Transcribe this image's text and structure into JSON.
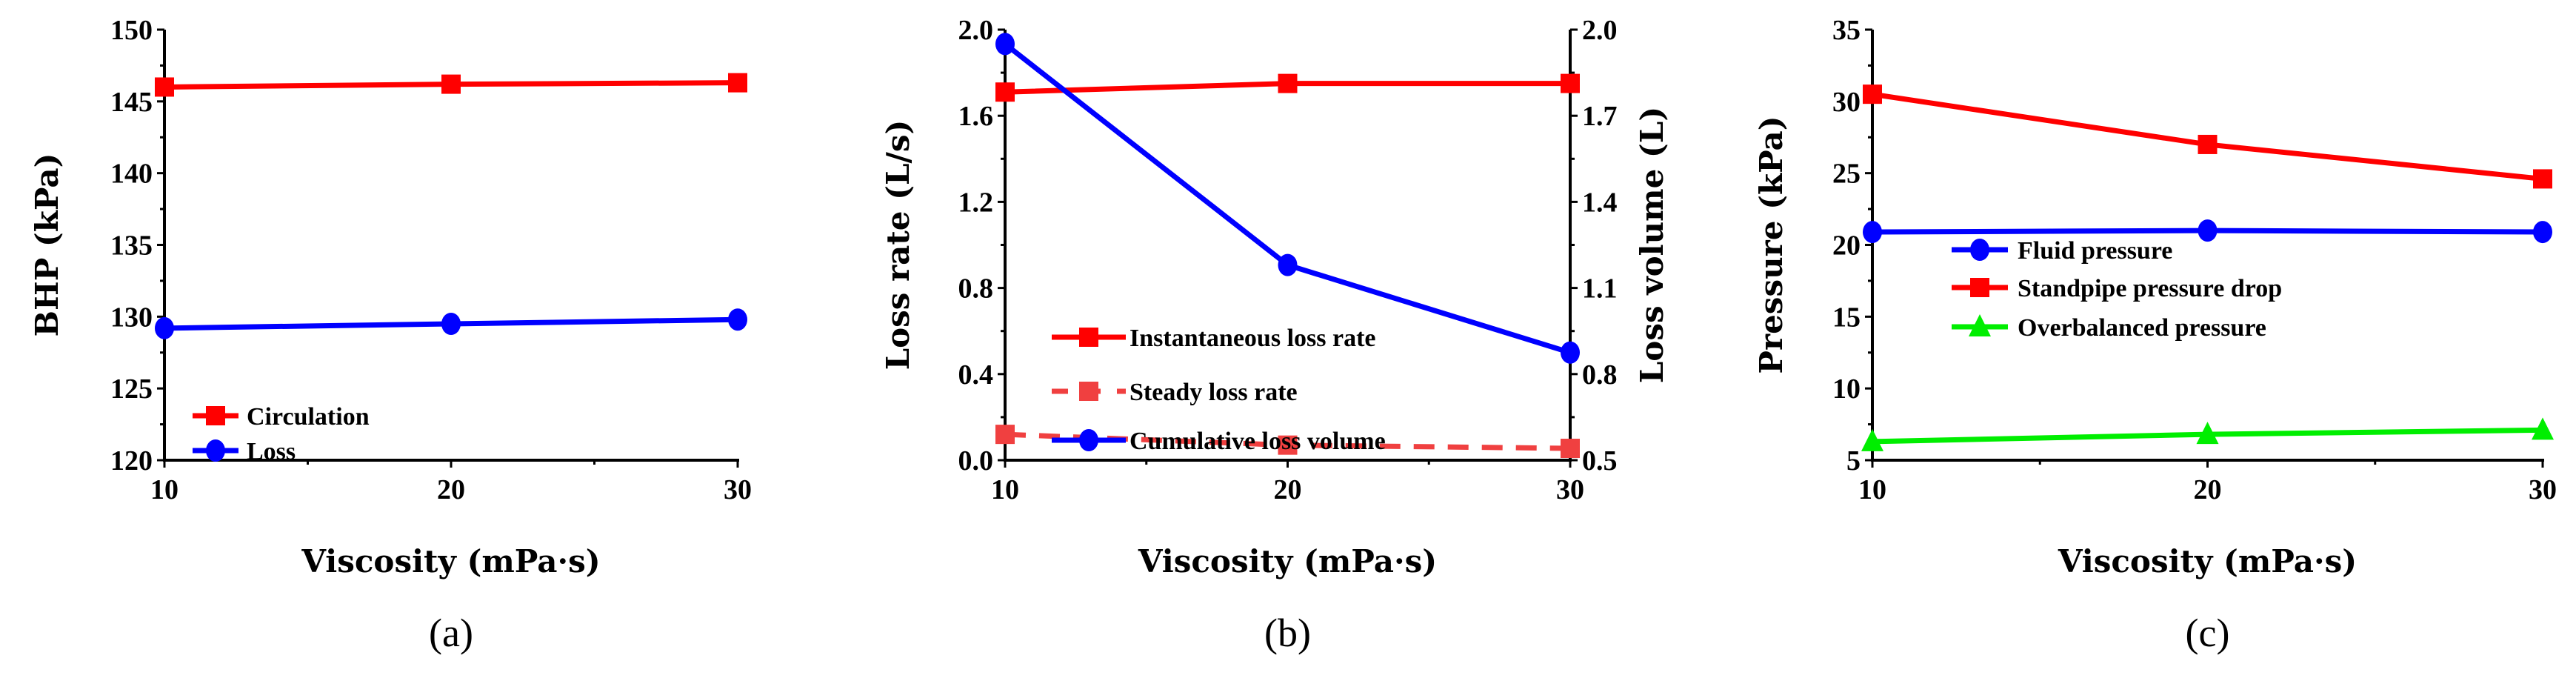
{
  "chart_data": [
    {
      "type": "line",
      "caption": "(a)",
      "xlabel": "Viscosity (mPa·s)",
      "ylabel": "BHP (kPa)",
      "x": [
        10,
        20,
        30
      ],
      "xticks": [
        "10",
        "20",
        "30"
      ],
      "xlim": [
        10,
        30
      ],
      "ylim": [
        120,
        150
      ],
      "yticks": [
        "120",
        "125",
        "130",
        "135",
        "140",
        "145",
        "150"
      ],
      "legend_position": "bottom-left",
      "series": [
        {
          "name": "Circulation",
          "values": [
            146.0,
            146.2,
            146.3
          ],
          "color": "#ff0000",
          "marker": "square",
          "dash": "solid",
          "axis": "left"
        },
        {
          "name": "Loss",
          "values": [
            129.2,
            129.5,
            129.8
          ],
          "color": "#0000ff",
          "marker": "circle",
          "dash": "solid",
          "axis": "left"
        }
      ]
    },
    {
      "type": "line",
      "caption": "(b)",
      "xlabel": "Viscosity (mPa·s)",
      "ylabel": "Loss rate (L/s)",
      "ylabel_right": "Loss volume (L)",
      "x": [
        10,
        20,
        30
      ],
      "xticks": [
        "10",
        "20",
        "30"
      ],
      "xlim": [
        10,
        30
      ],
      "ylim": [
        0,
        2.0
      ],
      "yticks": [
        "0.0",
        "0.4",
        "0.8",
        "1.2",
        "1.6",
        "2.0"
      ],
      "ylim_right": [
        0.5,
        2.0
      ],
      "yticks_right": [
        "0.5",
        "0.8",
        "1.1",
        "1.4",
        "1.7",
        "2.0"
      ],
      "legend_position": "bottom-left",
      "series": [
        {
          "name": "Instantaneous loss rate",
          "values": [
            1.71,
            1.75,
            1.75
          ],
          "color": "#ff0000",
          "marker": "square",
          "dash": "solid",
          "axis": "left"
        },
        {
          "name": "Steady loss rate",
          "values": [
            0.12,
            0.07,
            0.055
          ],
          "color": "#f04040",
          "marker": "square",
          "dash": "dashed",
          "axis": "left"
        },
        {
          "name": "Cumulative loss volume",
          "values": [
            1.95,
            1.18,
            0.875
          ],
          "color": "#0000ff",
          "marker": "circle",
          "dash": "solid",
          "axis": "right"
        }
      ]
    },
    {
      "type": "line",
      "caption": "(c)",
      "xlabel": "Viscosity (mPa·s)",
      "ylabel": "Pressure (kPa)",
      "x": [
        10,
        20,
        30
      ],
      "xticks": [
        "10",
        "20",
        "30"
      ],
      "xlim": [
        10,
        30
      ],
      "ylim": [
        5,
        35
      ],
      "yticks": [
        "5",
        "10",
        "15",
        "20",
        "25",
        "30",
        "35"
      ],
      "legend_position": "center-left",
      "series": [
        {
          "name": "Fluid pressure",
          "values": [
            20.9,
            21.0,
            20.9
          ],
          "color": "#0000ff",
          "marker": "circle",
          "dash": "solid",
          "axis": "left"
        },
        {
          "name": "Standpipe pressure drop",
          "values": [
            30.5,
            27.0,
            24.6
          ],
          "color": "#ff0000",
          "marker": "square",
          "dash": "solid",
          "axis": "left"
        },
        {
          "name": "Overbalanced pressure",
          "values": [
            6.3,
            6.8,
            7.1
          ],
          "color": "#00ee00",
          "marker": "triangle",
          "dash": "solid",
          "axis": "left"
        }
      ]
    }
  ]
}
